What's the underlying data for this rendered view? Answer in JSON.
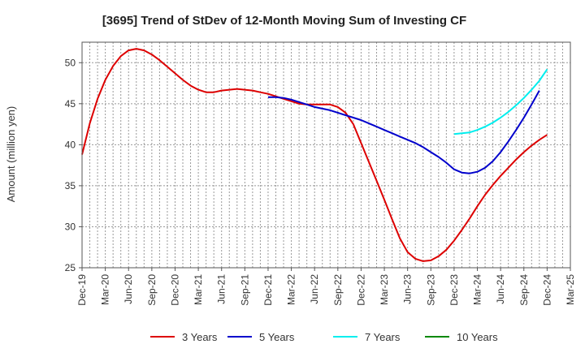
{
  "chart_data": {
    "type": "line",
    "title": "[3695]  Trend of StDev of 12-Month Moving Sum of Investing CF",
    "xlabel": "",
    "ylabel": "Amount (million yen)",
    "ylim": [
      25,
      52.5
    ],
    "yticks": [
      25,
      30,
      35,
      40,
      45,
      50
    ],
    "x_tick_labels": [
      "Dec-19",
      "Mar-20",
      "Jun-20",
      "Sep-20",
      "Dec-20",
      "Mar-21",
      "Jun-21",
      "Sep-21",
      "Dec-21",
      "Mar-22",
      "Jun-22",
      "Sep-22",
      "Dec-22",
      "Mar-23",
      "Jun-23",
      "Sep-23",
      "Dec-23",
      "Mar-24",
      "Jun-24",
      "Sep-24",
      "Dec-24",
      "Mar-25"
    ],
    "grid": true,
    "legend_position": "bottom",
    "colors": {
      "3 Years": "#dd0000",
      "5 Years": "#0000cc",
      "7 Years": "#00eeee",
      "10 Years": "#008800"
    },
    "series": [
      {
        "name": "3 Years",
        "start_month": 0,
        "values": [
          38.8,
          42.6,
          45.6,
          47.9,
          49.6,
          50.8,
          51.5,
          51.7,
          51.5,
          51.0,
          50.3,
          49.5,
          48.7,
          47.9,
          47.2,
          46.7,
          46.4,
          46.4,
          46.6,
          46.7,
          46.8,
          46.7,
          46.6,
          46.4,
          46.2,
          45.9,
          45.6,
          45.3,
          45.0,
          44.9,
          44.9,
          44.9,
          44.9,
          44.6,
          43.9,
          42.5,
          40.2,
          37.9,
          35.6,
          33.3,
          30.9,
          28.6,
          26.9,
          26.1,
          25.8,
          25.9,
          26.4,
          27.2,
          28.3,
          29.6,
          31.0,
          32.5,
          33.9,
          35.1,
          36.2,
          37.2,
          38.2,
          39.1,
          39.9,
          40.6,
          41.2
        ]
      },
      {
        "name": "5 Years",
        "start_month": 24,
        "values": [
          45.8,
          45.8,
          45.7,
          45.5,
          45.2,
          44.9,
          44.6,
          44.4,
          44.2,
          43.9,
          43.6,
          43.3,
          43.0,
          42.6,
          42.2,
          41.8,
          41.4,
          41.0,
          40.6,
          40.2,
          39.7,
          39.1,
          38.5,
          37.8,
          37.0,
          36.6,
          36.5,
          36.7,
          37.2,
          38.0,
          39.1,
          40.4,
          41.8,
          43.3,
          44.9,
          46.6
        ]
      },
      {
        "name": "7 Years",
        "start_month": 48,
        "values": [
          41.3,
          41.4,
          41.5,
          41.8,
          42.2,
          42.7,
          43.3,
          44.0,
          44.8,
          45.7,
          46.7,
          47.8,
          49.2
        ]
      },
      {
        "name": "10 Years",
        "start_month": 0,
        "values": []
      }
    ]
  }
}
